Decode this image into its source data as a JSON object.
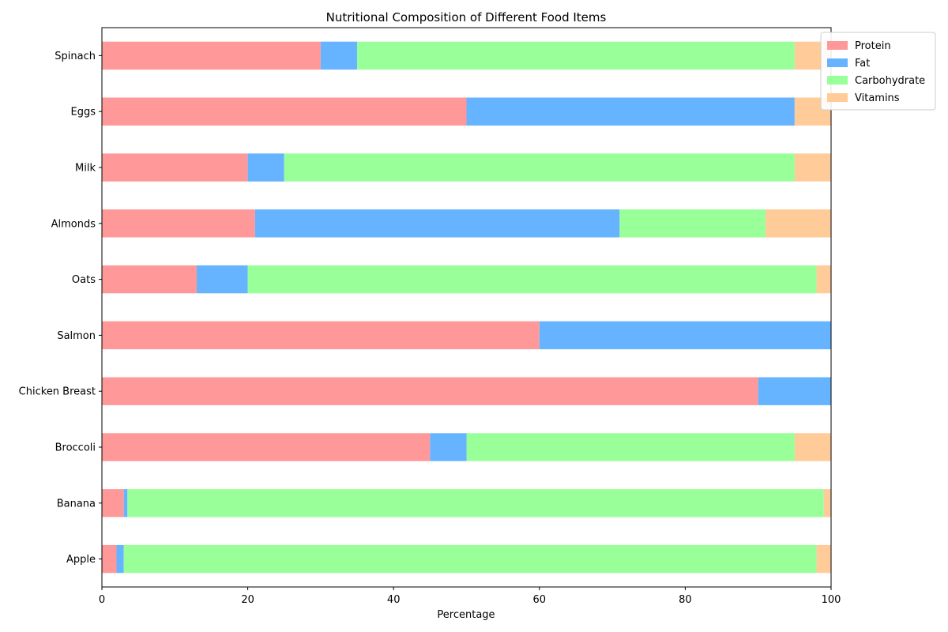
{
  "chart_data": {
    "type": "bar",
    "orientation": "horizontal",
    "stacked": true,
    "title": "Nutritional Composition of Different Food Items",
    "xlabel": "Percentage",
    "ylabel": "",
    "xlim": [
      0,
      100
    ],
    "xticks": [
      0,
      20,
      40,
      60,
      80,
      100
    ],
    "grid": false,
    "legend_position": "top-right",
    "categories": [
      "Apple",
      "Banana",
      "Broccoli",
      "Chicken Breast",
      "Salmon",
      "Oats",
      "Almonds",
      "Milk",
      "Eggs",
      "Spinach"
    ],
    "series": [
      {
        "name": "Protein",
        "color": "#ff9999",
        "values": [
          2,
          3,
          45,
          90,
          60,
          13,
          21,
          20,
          50,
          30
        ]
      },
      {
        "name": "Fat",
        "color": "#66b3ff",
        "values": [
          1,
          0.5,
          5,
          10,
          40,
          7,
          50,
          5,
          45,
          5
        ]
      },
      {
        "name": "Carbohydrate",
        "color": "#99ff99",
        "values": [
          95,
          95.5,
          45,
          0,
          0,
          78,
          20,
          70,
          0,
          60
        ]
      },
      {
        "name": "Vitamins",
        "color": "#ffcc99",
        "values": [
          2,
          1,
          5,
          0,
          0,
          2,
          9,
          5,
          5,
          5
        ]
      }
    ]
  }
}
